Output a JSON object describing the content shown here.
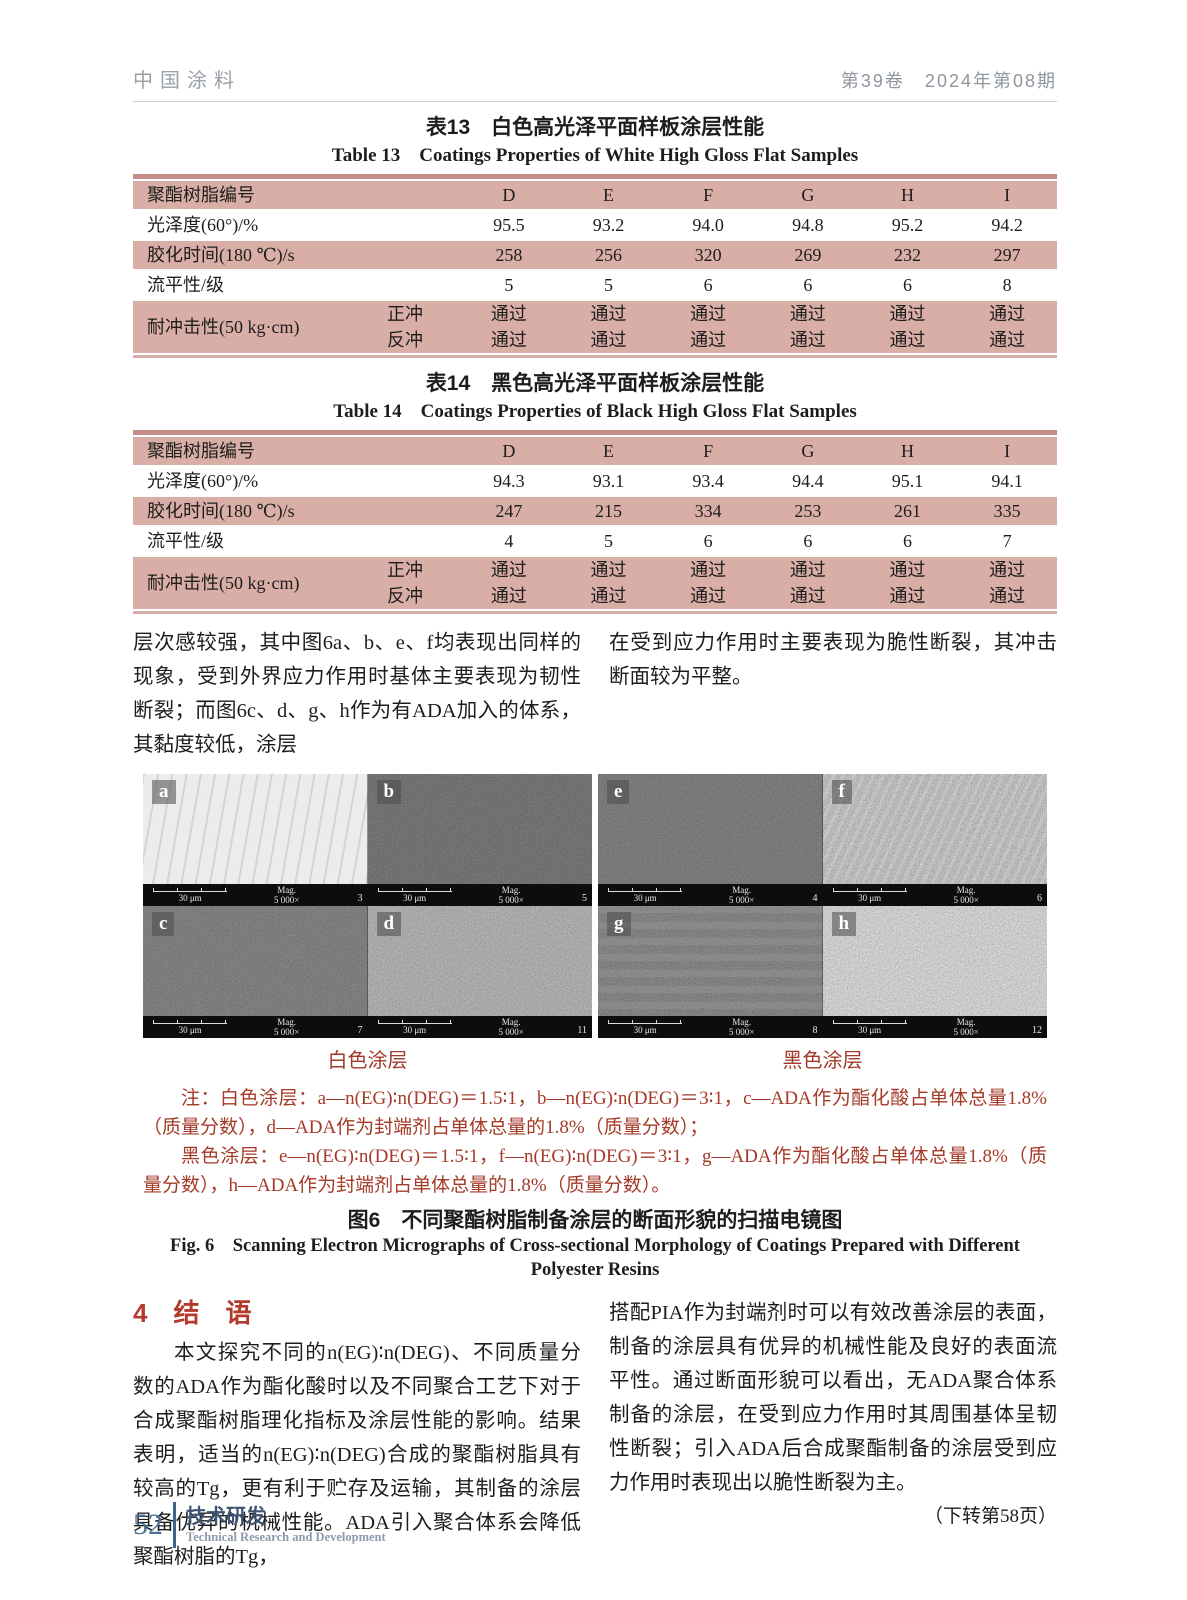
{
  "header": {
    "journal": "中国涂料",
    "issue": "第39卷　2024年第08期"
  },
  "tables": [
    {
      "title_zh": "表13　白色高光泽平面样板涂层性能",
      "title_en": "Table 13　Coatings Properties of White High Gloss Flat Samples",
      "header_label": "聚酯树脂编号",
      "columns": [
        "D",
        "E",
        "F",
        "G",
        "H",
        "I"
      ],
      "rows": [
        {
          "label": "光泽度(60°)/%",
          "values": [
            "95.5",
            "93.2",
            "94.0",
            "94.8",
            "95.2",
            "94.2"
          ]
        },
        {
          "label": "胶化时间(180 ℃)/s",
          "values": [
            "258",
            "256",
            "320",
            "269",
            "232",
            "297"
          ]
        },
        {
          "label": "流平性/级",
          "values": [
            "5",
            "5",
            "6",
            "6",
            "6",
            "8"
          ]
        },
        {
          "label": "耐冲击性(50 kg·cm)",
          "sub": [
            {
              "label": "正冲",
              "values": [
                "通过",
                "通过",
                "通过",
                "通过",
                "通过",
                "通过"
              ]
            },
            {
              "label": "反冲",
              "values": [
                "通过",
                "通过",
                "通过",
                "通过",
                "通过",
                "通过"
              ]
            }
          ]
        }
      ]
    },
    {
      "title_zh": "表14　黑色高光泽平面样板涂层性能",
      "title_en": "Table 14　Coatings Properties of Black High Gloss Flat Samples",
      "header_label": "聚酯树脂编号",
      "columns": [
        "D",
        "E",
        "F",
        "G",
        "H",
        "I"
      ],
      "rows": [
        {
          "label": "光泽度(60°)/%",
          "values": [
            "94.3",
            "93.1",
            "93.4",
            "94.4",
            "95.1",
            "94.1"
          ]
        },
        {
          "label": "胶化时间(180 ℃)/s",
          "values": [
            "247",
            "215",
            "334",
            "253",
            "261",
            "335"
          ]
        },
        {
          "label": "流平性/级",
          "values": [
            "4",
            "5",
            "6",
            "6",
            "6",
            "7"
          ]
        },
        {
          "label": "耐冲击性(50 kg·cm)",
          "sub": [
            {
              "label": "正冲",
              "values": [
                "通过",
                "通过",
                "通过",
                "通过",
                "通过",
                "通过"
              ]
            },
            {
              "label": "反冲",
              "values": [
                "通过",
                "通过",
                "通过",
                "通过",
                "通过",
                "通过"
              ]
            }
          ]
        }
      ]
    }
  ],
  "body_text": {
    "left": "层次感较强，其中图6a、b、e、f均表现出同样的现象，受到外界应力作用时基体主要表现为韧性断裂；而图6c、d、g、h作为有ADA加入的体系，其黏度较低，涂层",
    "right": "在受到应力作用时主要表现为脆性断裂，其冲击断面较为平整。"
  },
  "figure": {
    "scalebar": {
      "scale": "30 μm",
      "mag_label": "Mag.",
      "mag_value": "5 000×"
    },
    "groups": [
      {
        "caption": "白色涂层",
        "panels": [
          {
            "letter": "a",
            "frame": "3"
          },
          {
            "letter": "b",
            "frame": "5"
          },
          {
            "letter": "c",
            "frame": "7"
          },
          {
            "letter": "d",
            "frame": "11"
          }
        ]
      },
      {
        "caption": "黑色涂层",
        "panels": [
          {
            "letter": "e",
            "frame": "4"
          },
          {
            "letter": "f",
            "frame": "6"
          },
          {
            "letter": "g",
            "frame": "8"
          },
          {
            "letter": "h",
            "frame": "12"
          }
        ]
      }
    ],
    "note_white": "注：白色涂层：a—n(EG)∶n(DEG)＝1.5∶1，b—n(EG)∶n(DEG)＝3∶1，c—ADA作为酯化酸占单体总量1.8%（质量分数），d—ADA作为封端剂占单体总量的1.8%（质量分数）；",
    "note_black": "黑色涂层：e—n(EG)∶n(DEG)＝1.5∶1，f—n(EG)∶n(DEG)＝3∶1，g—ADA作为酯化酸占单体总量1.8%（质量分数），h—ADA作为封端剂占单体总量的1.8%（质量分数）。",
    "caption_zh": "图6　不同聚酯树脂制备涂层的断面形貌的扫描电镜图",
    "caption_en": "Fig. 6　Scanning Electron Micrographs of Cross-sectional Morphology of Coatings Prepared with Different Polyester Resins"
  },
  "conclusion": {
    "heading": "4　结　语",
    "para_left": "本文探究不同的n(EG)∶n(DEG)、不同质量分数的ADA作为酯化酸时以及不同聚合工艺下对于合成聚酯树脂理化指标及涂层性能的影响。结果表明，适当的n(EG)∶n(DEG)合成的聚酯树脂具有较高的Tg，更有利于贮存及运输，其制备的涂层具备优异的机械性能。ADA引入聚合体系会降低聚酯树脂的Tg，",
    "para_right": "搭配PIA作为封端剂时可以有效改善涂层的表面，制备的涂层具有优异的机械性能及良好的表面流平性。通过断面形貌可以看出，无ADA聚合体系制备的涂层，在受到应力作用时其周围基体呈韧性断裂；引入ADA后合成聚酯制备的涂层受到应力作用时表现出以脆性断裂为主。",
    "continuation": "（下转第58页）"
  },
  "footer": {
    "page": "52",
    "section_zh": "技术研发",
    "section_en": "Technical Research and Development"
  },
  "colors": {
    "table_band": "#d9aea6",
    "table_band_top": "#c48e86",
    "accent_red": "#b43a2b",
    "note_red": "#a63a28",
    "footer_blue": "#4e719a"
  }
}
